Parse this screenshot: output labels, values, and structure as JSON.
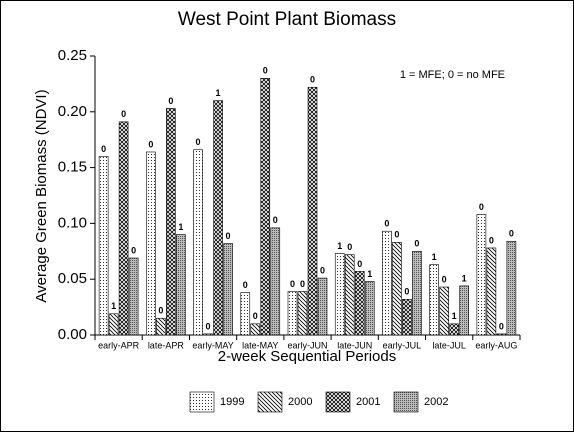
{
  "chart_data": {
    "type": "bar",
    "title": "West Point Plant Biomass",
    "x_label": "2-week Sequential Periods",
    "y_label": "Average Green Biomass (NDVI)",
    "annotation": "1 = MFE; 0 = no MFE",
    "categories": [
      "early-APR",
      "late-APR",
      "early-MAY",
      "late-MAY",
      "early-JUN",
      "late-JUN",
      "early-JUL",
      "late-JUL",
      "early-AUG"
    ],
    "series": [
      {
        "name": "1999",
        "color": "#000000",
        "pattern": "dots",
        "values": [
          0.16,
          0.164,
          0.166,
          0.038,
          0.039,
          0.073,
          0.093,
          0.063,
          0.108
        ],
        "flags": [
          0,
          0,
          0,
          0,
          0,
          1,
          0,
          1,
          0
        ]
      },
      {
        "name": "2000",
        "color": "#000000",
        "pattern": "diagonal",
        "values": [
          0.019,
          0.015,
          0.001,
          0.01,
          0.039,
          0.072,
          0.083,
          0.043,
          0.078
        ],
        "flags": [
          1,
          0,
          0,
          0,
          0,
          0,
          0,
          0,
          0
        ]
      },
      {
        "name": "2001",
        "color": "#000000",
        "pattern": "crosshatch",
        "values": [
          0.191,
          0.203,
          0.21,
          0.23,
          0.222,
          0.057,
          0.032,
          0.01,
          0.001
        ],
        "flags": [
          0,
          0,
          1,
          0,
          0,
          0,
          0,
          1,
          0
        ]
      },
      {
        "name": "2002",
        "color": "#000000",
        "pattern": "dense",
        "values": [
          0.069,
          0.09,
          0.082,
          0.096,
          0.051,
          0.048,
          0.075,
          0.044,
          0.084
        ],
        "flags": [
          0,
          1,
          0,
          0,
          0,
          1,
          0,
          1,
          0
        ]
      }
    ],
    "ylim": [
      0,
      0.25
    ],
    "yticks": [
      {
        "value": 0,
        "label": "0.00"
      },
      0.05,
      {
        "value": 0.1,
        "label": "0.10"
      },
      0.15,
      {
        "value": 0.2,
        "label": "0.20"
      },
      0.25
    ],
    "grid": false,
    "legend": "bottom"
  }
}
